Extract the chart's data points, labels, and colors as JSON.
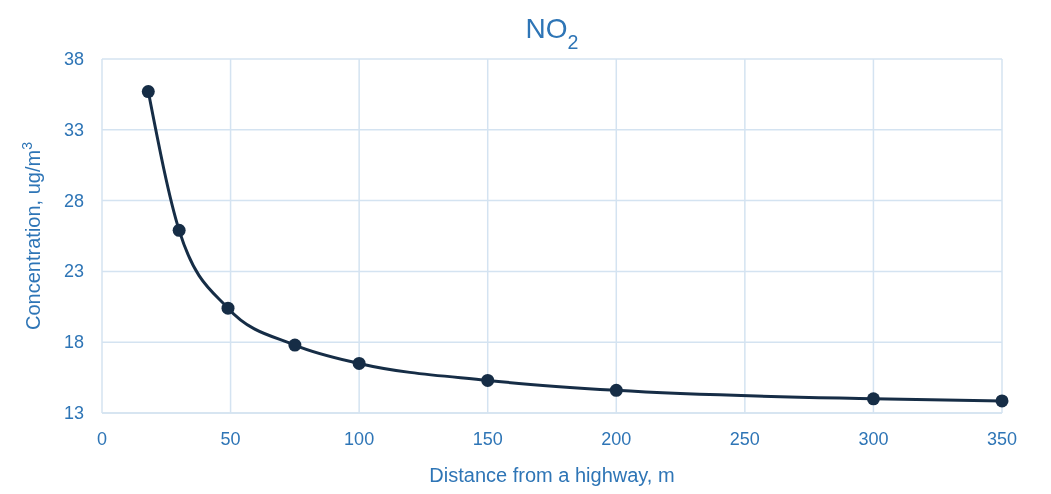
{
  "chart_data": {
    "type": "line",
    "title": "NO$_{2}$",
    "xlabel": "Distance from a highway, m",
    "ylabel": "Concentration, ug/m$^{3}$",
    "x": [
      18,
      30,
      49,
      75,
      100,
      150,
      200,
      300,
      350
    ],
    "series": [
      {
        "color": "#162d46",
        "values": [
          35.7,
          25.9,
          20.4,
          17.8,
          16.5,
          15.3,
          14.6,
          14.0,
          13.85
        ]
      }
    ],
    "xlim": [
      0,
      350
    ],
    "xticks": [
      0,
      50,
      100,
      150,
      200,
      250,
      300,
      350
    ],
    "ylim": [
      13,
      38
    ],
    "yticks": [
      13,
      18,
      23,
      28,
      33,
      38
    ],
    "grid": true,
    "marker": "circle",
    "line_style": "solid"
  }
}
